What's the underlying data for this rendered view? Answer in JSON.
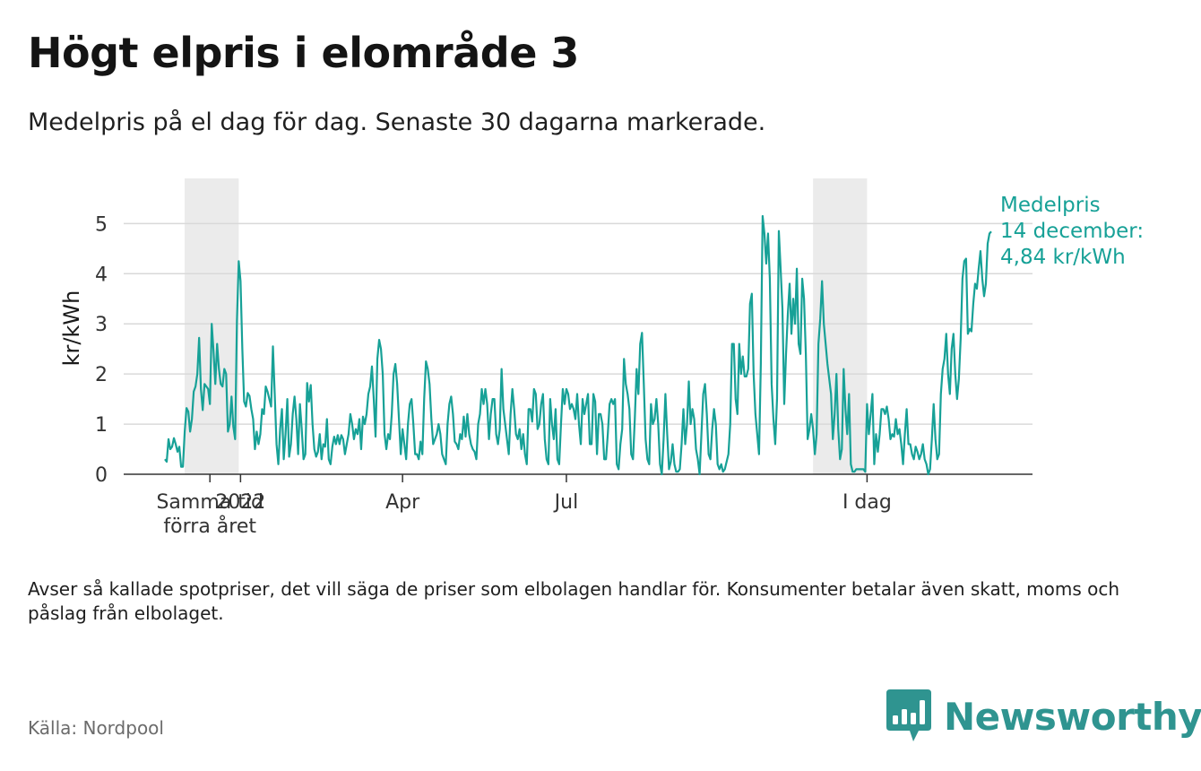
{
  "header": {
    "title": "Högt elpris i elområde 3",
    "subtitle": "Medelpris på el dag för dag.  Senaste 30 dagarna markerade."
  },
  "chart_data": {
    "type": "line",
    "title": "Högt elpris i elområde 3",
    "ylabel": "kr/kWh",
    "xlabel": "",
    "ylim": [
      0,
      5.9
    ],
    "y_ticks": [
      0,
      1,
      2,
      3,
      4,
      5
    ],
    "x_ticks": [
      {
        "label_lines": [
          "Samma tid",
          "förra året"
        ],
        "day": 25
      },
      {
        "label_lines": [
          "2022"
        ],
        "day": 42
      },
      {
        "label_lines": [
          "Apr"
        ],
        "day": 132
      },
      {
        "label_lines": [
          "Jul"
        ],
        "day": 223
      },
      {
        "label_lines": [
          "I dag"
        ],
        "day": 390
      }
    ],
    "highlight_periods": [
      {
        "name": "Senaste 30 dagarna förra året",
        "start_day": 11,
        "end_day": 41
      },
      {
        "name": "Senaste 30 dagarna",
        "start_day": 360,
        "end_day": 390
      }
    ],
    "series": [
      {
        "name": "Medelpris",
        "color": "#17a197",
        "start_date": "2021-11-17",
        "end_date": "2022-12-14",
        "values": [
          0.3,
          0.25,
          0.7,
          0.5,
          0.55,
          0.72,
          0.6,
          0.45,
          0.55,
          0.15,
          0.15,
          0.85,
          1.32,
          1.25,
          0.85,
          1.1,
          1.65,
          1.75,
          2.0,
          2.72,
          1.7,
          1.28,
          1.8,
          1.75,
          1.7,
          1.4,
          3.0,
          2.45,
          1.8,
          2.6,
          2.1,
          1.8,
          1.75,
          2.1,
          2.0,
          0.85,
          1.0,
          1.55,
          0.95,
          0.7,
          3.05,
          4.25,
          3.85,
          2.5,
          1.45,
          1.35,
          1.62,
          1.56,
          1.3,
          1.1,
          0.5,
          0.85,
          0.6,
          0.8,
          1.3,
          1.2,
          1.75,
          1.65,
          1.5,
          1.35,
          2.55,
          1.6,
          0.6,
          0.2,
          0.9,
          1.3,
          0.3,
          0.8,
          1.5,
          0.35,
          0.6,
          1.2,
          1.55,
          1.1,
          0.4,
          1.4,
          0.9,
          0.3,
          0.4,
          1.82,
          1.45,
          1.78,
          1.0,
          0.5,
          0.35,
          0.45,
          0.8,
          0.3,
          0.6,
          0.55,
          1.1,
          0.3,
          0.2,
          0.55,
          0.75,
          0.6,
          0.78,
          0.6,
          0.78,
          0.7,
          0.4,
          0.6,
          0.8,
          1.2,
          1.0,
          0.7,
          0.9,
          0.8,
          1.1,
          0.5,
          1.15,
          1.0,
          1.2,
          1.6,
          1.75,
          2.15,
          1.5,
          0.75,
          2.3,
          2.68,
          2.5,
          2.0,
          0.8,
          0.5,
          0.8,
          0.7,
          1.2,
          2.0,
          2.2,
          1.8,
          1.1,
          0.4,
          0.9,
          0.6,
          0.3,
          1.0,
          1.4,
          1.5,
          1.0,
          0.4,
          0.4,
          0.3,
          0.65,
          0.4,
          1.5,
          2.25,
          2.1,
          1.8,
          1.1,
          0.6,
          0.7,
          0.8,
          1.0,
          0.8,
          0.4,
          0.3,
          0.2,
          1.0,
          1.4,
          1.55,
          1.2,
          0.65,
          0.6,
          0.5,
          0.8,
          0.7,
          1.15,
          0.75,
          1.2,
          0.8,
          0.6,
          0.5,
          0.45,
          0.3,
          1.0,
          1.2,
          1.7,
          1.4,
          1.7,
          1.4,
          0.7,
          1.2,
          1.5,
          1.5,
          0.8,
          0.6,
          0.9,
          2.1,
          1.3,
          1.0,
          0.7,
          0.4,
          1.2,
          1.7,
          1.3,
          0.8,
          0.7,
          0.9,
          0.5,
          0.8,
          0.4,
          0.2,
          1.3,
          1.3,
          1.05,
          1.7,
          1.6,
          0.9,
          1.0,
          1.4,
          1.6,
          0.7,
          0.3,
          0.2,
          1.5,
          1.0,
          0.7,
          1.3,
          0.3,
          0.2,
          1.0,
          1.7,
          1.4,
          1.7,
          1.6,
          1.3,
          1.4,
          1.3,
          1.1,
          1.6,
          1.0,
          0.6,
          1.5,
          1.2,
          1.4,
          1.6,
          0.6,
          0.6,
          1.6,
          1.45,
          0.4,
          1.2,
          1.2,
          1.0,
          0.3,
          0.3,
          0.8,
          1.4,
          1.5,
          1.4,
          1.5,
          0.2,
          0.1,
          0.6,
          0.9,
          2.3,
          1.8,
          1.6,
          1.3,
          0.4,
          0.3,
          1.1,
          2.1,
          1.6,
          2.6,
          2.82,
          1.8,
          0.7,
          0.3,
          0.2,
          1.4,
          1.0,
          1.1,
          1.5,
          1.0,
          0.2,
          0.0,
          0.7,
          1.6,
          0.8,
          0.1,
          0.25,
          0.6,
          0.2,
          0.05,
          0.05,
          0.1,
          0.6,
          1.3,
          0.6,
          1.0,
          1.85,
          1.0,
          1.3,
          1.1,
          0.5,
          0.3,
          0.0,
          0.8,
          1.6,
          1.8,
          1.2,
          0.4,
          0.3,
          0.9,
          1.3,
          1.0,
          0.2,
          0.1,
          0.2,
          0.05,
          0.1,
          0.25,
          0.4,
          1.0,
          2.6,
          2.6,
          1.5,
          1.2,
          2.6,
          2.0,
          2.35,
          1.95,
          1.95,
          2.1,
          3.4,
          3.6,
          2.0,
          1.2,
          0.8,
          0.4,
          2.2,
          5.15,
          4.8,
          4.2,
          4.8,
          3.9,
          1.8,
          1.1,
          0.6,
          1.5,
          4.85,
          4.1,
          3.3,
          1.4,
          2.4,
          3.2,
          3.8,
          2.8,
          3.5,
          3.0,
          4.1,
          2.6,
          2.4,
          3.9,
          3.5,
          2.4,
          0.7,
          0.9,
          1.2,
          0.9,
          0.4,
          0.8,
          2.6,
          3.1,
          3.85,
          3.0,
          2.6,
          2.2,
          1.9,
          1.6,
          0.7,
          1.2,
          2.0,
          0.9,
          0.3,
          0.5,
          2.1,
          1.3,
          0.8,
          1.6,
          0.2,
          0.05,
          0.05,
          0.1,
          0.1,
          0.1,
          0.1,
          0.1,
          0.05,
          1.4,
          0.8,
          1.2,
          1.6,
          0.2,
          0.8,
          0.45,
          0.8,
          1.3,
          1.3,
          1.2,
          1.35,
          1.1,
          0.7,
          0.8,
          0.75,
          1.1,
          0.8,
          0.9,
          0.6,
          0.2,
          0.8,
          1.3,
          0.6,
          0.6,
          0.4,
          0.3,
          0.55,
          0.45,
          0.3,
          0.4,
          0.6,
          0.3,
          0.2,
          0.0,
          0.1,
          0.7,
          1.4,
          0.7,
          0.3,
          0.4,
          1.6,
          2.1,
          2.3,
          2.8,
          2.0,
          1.6,
          2.5,
          2.8,
          2.0,
          1.5,
          1.9,
          2.7,
          3.9,
          4.25,
          4.3,
          2.8,
          2.9,
          2.85,
          3.4,
          3.8,
          3.7,
          4.1,
          4.45,
          3.9,
          3.55,
          3.8,
          4.6,
          4.8,
          4.84
        ]
      }
    ],
    "annotation": [
      "Medelpris",
      "14 december:",
      "4,84 kr/kWh"
    ]
  },
  "footer": {
    "note": "Avser så kallade spotpriser, det vill säga de priser som elbolagen handlar för. Konsumenter betalar även skatt, moms och påslag från elbolaget.",
    "source": "Källa: Nordpool",
    "brand": "Newsworthy"
  },
  "colors": {
    "accent": "#17a197",
    "brand": "#2f9490",
    "highlight": "#ebebeb"
  }
}
